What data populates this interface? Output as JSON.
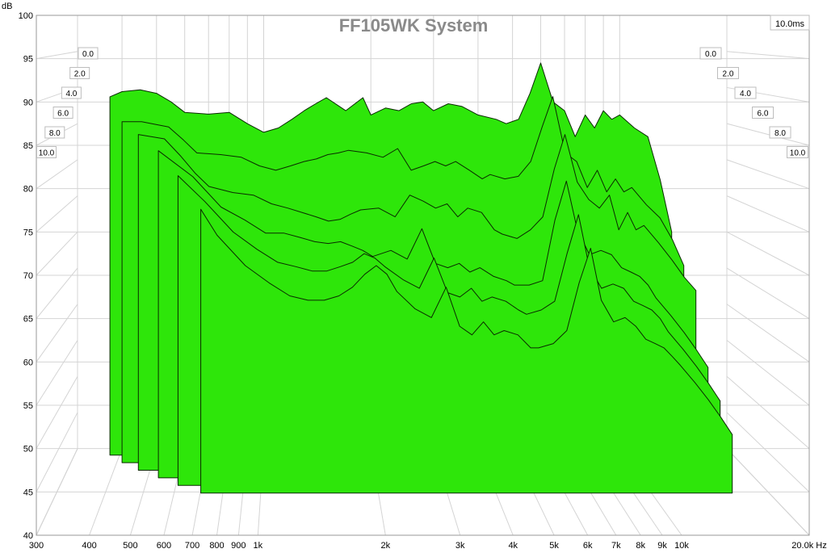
{
  "chart_data": {
    "type": "area",
    "subtype": "cumulative-spectral-decay-waterfall",
    "title": "FF105WK System",
    "ylabel": "dB",
    "xlabel": "Hz",
    "x_scale": "log",
    "xlim": [
      300,
      20000
    ],
    "ylim": [
      40,
      100
    ],
    "y_ticks": [
      "100",
      "95",
      "90",
      "85",
      "80",
      "75",
      "70",
      "65",
      "60",
      "55",
      "50",
      "45",
      "40"
    ],
    "x_ticks": [
      {
        "v": 300,
        "label": "300"
      },
      {
        "v": 400,
        "label": "400"
      },
      {
        "v": 500,
        "label": "500"
      },
      {
        "v": 600,
        "label": "600"
      },
      {
        "v": 700,
        "label": "700"
      },
      {
        "v": 800,
        "label": "800"
      },
      {
        "v": 900,
        "label": "900"
      },
      {
        "v": 1000,
        "label": "1k"
      },
      {
        "v": 2000,
        "label": "2k"
      },
      {
        "v": 3000,
        "label": "3k"
      },
      {
        "v": 4000,
        "label": "4k"
      },
      {
        "v": 5000,
        "label": "5k"
      },
      {
        "v": 6000,
        "label": "6k"
      },
      {
        "v": 7000,
        "label": "7k"
      },
      {
        "v": 8000,
        "label": "8k"
      },
      {
        "v": 9000,
        "label": "9k"
      },
      {
        "v": 10000,
        "label": "10k"
      },
      {
        "v": 20000,
        "label": "20.0k Hz"
      }
    ],
    "time_unit": "ms",
    "time_labels_left": [
      "0.0",
      "2.0",
      "4.0",
      "6.0",
      "8.0",
      "10.0"
    ],
    "time_labels_right": [
      "0.0",
      "2.0",
      "4.0",
      "6.0",
      "8.0",
      "10.0"
    ],
    "time_readout": "10.0ms",
    "fill_color": "#2ee60a",
    "series": [
      {
        "time_ms": 0.0,
        "x": [
          370,
          400,
          450,
          500,
          550,
          600,
          700,
          800,
          900,
          1000,
          1100,
          1200,
          1300,
          1400,
          1500,
          1700,
          1900,
          2000,
          2200,
          2400,
          2600,
          2800,
          3000,
          3300,
          3600,
          4000,
          4500,
          4800,
          5200,
          5600,
          6000,
          6500,
          7000,
          7500,
          8000,
          8500,
          9000,
          9500,
          10000,
          11000,
          12000,
          13000,
          14000
        ],
        "y": [
          90.6,
          91.2,
          91.4,
          91.0,
          90.0,
          88.8,
          88.6,
          88.8,
          87.5,
          86.5,
          87.0,
          88.0,
          89.0,
          89.8,
          90.5,
          89.0,
          90.5,
          88.5,
          89.3,
          89.0,
          89.8,
          90.0,
          89.0,
          89.8,
          89.5,
          88.5,
          88.0,
          87.5,
          88.0,
          91.0,
          94.5,
          90.0,
          89.0,
          86.0,
          88.5,
          87.0,
          89.0,
          88.0,
          88.5,
          87.0,
          86.0,
          81.0,
          75.0
        ]
      },
      {
        "time_ms": 2.0,
        "x": [
          370,
          420,
          500,
          550,
          600,
          700,
          800,
          900,
          1000,
          1100,
          1200,
          1300,
          1400,
          1500,
          1600,
          1800,
          2000,
          2200,
          2400,
          2600,
          2800,
          3000,
          3200,
          3500,
          3800,
          4000,
          4400,
          4800,
          5200,
          5600,
          6000,
          6500,
          7000,
          7500,
          8000,
          8500,
          9000,
          9500,
          10000,
          11000,
          12000,
          13000,
          14000
        ],
        "y": [
          88.6,
          88.6,
          88.0,
          86.5,
          85.0,
          84.8,
          84.5,
          83.5,
          83.0,
          83.5,
          84.0,
          84.3,
          84.8,
          85.0,
          85.3,
          85.0,
          84.5,
          85.5,
          83.0,
          83.5,
          84.0,
          83.5,
          84.0,
          83.0,
          82.0,
          82.5,
          82.0,
          82.3,
          84.0,
          88.0,
          91.5,
          85.0,
          84.0,
          81.0,
          83.0,
          80.5,
          82.0,
          80.5,
          81.0,
          79.0,
          77.5,
          75.0,
          72.0
        ]
      },
      {
        "time_ms": 4.0,
        "x": [
          380,
          450,
          500,
          550,
          600,
          700,
          800,
          900,
          1000,
          1200,
          1300,
          1400,
          1500,
          1600,
          1800,
          2000,
          2200,
          2400,
          2600,
          2800,
          3000,
          3200,
          3500,
          3800,
          4000,
          4400,
          4800,
          5200,
          5600,
          6000,
          6500,
          7000,
          7500,
          8000,
          8500,
          9000,
          9500,
          10000,
          11000,
          12000,
          13000,
          14000
        ],
        "y": [
          88.0,
          87.5,
          85.5,
          83.5,
          82.0,
          81.3,
          81.0,
          80.0,
          79.5,
          78.5,
          78.0,
          78.2,
          78.8,
          79.3,
          79.5,
          78.5,
          81.0,
          80.3,
          79.5,
          80.0,
          78.5,
          79.5,
          79.0,
          77.0,
          76.5,
          76.0,
          77.0,
          78.5,
          84.0,
          88.0,
          82.5,
          80.5,
          79.5,
          81.0,
          77.0,
          79.0,
          77.0,
          77.5,
          75.5,
          73.5,
          71.5,
          70.0
        ]
      },
      {
        "time_ms": 6.0,
        "x": [
          400,
          500,
          600,
          700,
          800,
          900,
          1000,
          1100,
          1200,
          1300,
          1400,
          1500,
          1600,
          1800,
          2000,
          2200,
          2400,
          2600,
          2800,
          3000,
          3200,
          3500,
          3800,
          4000,
          4400,
          4800,
          5200,
          5600,
          6000,
          6500,
          7000,
          7500,
          8000,
          8500,
          9000,
          9500,
          10000,
          11000,
          12000,
          13000,
          14000
        ],
        "y": [
          87.0,
          84.0,
          80.5,
          79.0,
          77.5,
          77.5,
          77.0,
          76.5,
          76.3,
          76.5,
          76.0,
          75.5,
          74.8,
          75.5,
          74.5,
          78.0,
          74.0,
          73.5,
          74.0,
          73.0,
          73.5,
          72.5,
          72.0,
          71.5,
          71.5,
          72.0,
          79.0,
          83.5,
          78.0,
          75.0,
          75.5,
          75.0,
          73.5,
          73.0,
          72.5,
          71.5,
          70.0,
          68.0,
          66.0,
          64.0,
          62.0
        ]
      },
      {
        "time_ms": 8.0,
        "x": [
          420,
          500,
          600,
          700,
          800,
          900,
          1000,
          1100,
          1200,
          1300,
          1400,
          1500,
          1600,
          1800,
          2000,
          2200,
          2400,
          2600,
          2800,
          3000,
          3200,
          3500,
          3800,
          4000,
          4400,
          4800,
          5200,
          5600,
          6000,
          6500,
          7000,
          7500,
          8000,
          8500,
          9000,
          9500,
          10000,
          11000,
          12000,
          13000,
          14000
        ],
        "y": [
          85.0,
          82.0,
          78.5,
          76.5,
          75.0,
          74.5,
          74.0,
          74.0,
          74.5,
          75.0,
          76.0,
          75.5,
          74.5,
          73.0,
          72.0,
          75.5,
          71.5,
          71.0,
          72.0,
          70.5,
          71.0,
          70.5,
          69.5,
          69.0,
          69.5,
          70.5,
          76.0,
          80.5,
          74.5,
          72.0,
          72.5,
          72.0,
          70.5,
          70.0,
          69.5,
          68.5,
          67.0,
          65.0,
          63.0,
          61.0,
          59.0
        ]
      },
      {
        "time_ms": 10.0,
        "x": [
          450,
          500,
          600,
          700,
          800,
          900,
          1000,
          1100,
          1200,
          1300,
          1400,
          1500,
          1600,
          1800,
          2000,
          2200,
          2400,
          2600,
          2800,
          3000,
          3200,
          3500,
          3800,
          4000,
          4400,
          4800,
          5200,
          5600,
          6000,
          6500,
          7000,
          7500,
          8000,
          8500,
          9000,
          9500,
          10000,
          11000,
          12000,
          13000,
          14000
        ],
        "y": [
          82.0,
          79.0,
          75.5,
          73.5,
          72.0,
          71.5,
          71.5,
          72.0,
          73.0,
          74.5,
          75.5,
          74.5,
          72.5,
          70.5,
          69.5,
          73.0,
          68.5,
          67.5,
          69.0,
          67.5,
          68.0,
          67.5,
          66.0,
          66.0,
          66.5,
          68.0,
          73.5,
          77.5,
          71.5,
          69.0,
          69.5,
          68.5,
          67.0,
          66.5,
          66.0,
          65.0,
          64.0,
          62.0,
          60.0,
          58.0,
          56.0
        ]
      }
    ]
  }
}
